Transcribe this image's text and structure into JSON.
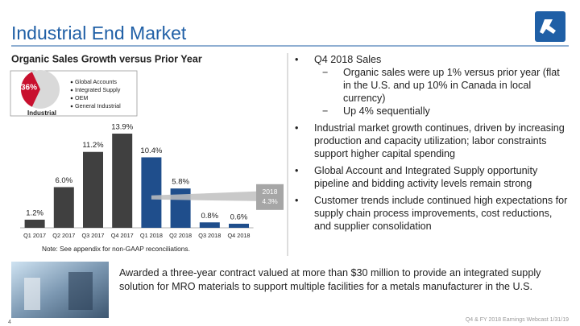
{
  "slide": {
    "title": "Industrial End Market",
    "page_number": "4",
    "footer": "Q4 & FY 2018 Earnings Webcast 1/31/19"
  },
  "segment": {
    "value": 36,
    "value_label": "36%",
    "label": "Industrial",
    "color": "#c8102e",
    "legend": [
      "Global Accounts",
      "Integrated Supply",
      "OEM",
      "General Industrial"
    ]
  },
  "chart_data": {
    "type": "bar",
    "title": "Organic Sales Growth versus Prior Year",
    "categories": [
      "Q1 2017",
      "Q2 2017",
      "Q3 2017",
      "Q4 2017",
      "Q1 2018",
      "Q2 2018",
      "Q3 2018",
      "Q4 2018"
    ],
    "values": [
      1.2,
      6.0,
      11.2,
      13.9,
      10.4,
      5.8,
      0.8,
      0.6
    ],
    "value_labels": [
      "1.2%",
      "6.0%",
      "11.2%",
      "13.9%",
      "10.4%",
      "5.8%",
      "0.8%",
      "0.6%"
    ],
    "colors": [
      "#404040",
      "#404040",
      "#404040",
      "#404040",
      "#1f4e8c",
      "#1f4e8c",
      "#1f4e8c",
      "#1f4e8c"
    ],
    "annotation": {
      "label": "2018",
      "value": 4.3,
      "value_label": "4.3%"
    },
    "note": "Note: See appendix for non-GAAP reconciliations."
  },
  "bullets": [
    {
      "text": "Q4 2018 Sales",
      "sub": [
        "Organic sales were up 1% versus prior year (flat in the U.S. and up 10% in Canada in local currency)",
        "Up 4% sequentially"
      ]
    },
    {
      "text": "Industrial market growth continues, driven by increasing production and capacity utilization; labor constraints support higher capital spending",
      "sub": []
    },
    {
      "text": "Global Account and Integrated Supply opportunity pipeline and bidding activity levels remain strong",
      "sub": []
    },
    {
      "text": "Customer trends include continued high expectations for supply chain process improvements, cost reductions, and supplier consolidation",
      "sub": []
    }
  ],
  "award": "Awarded a three-year contract valued at more than $30 million to provide an integrated supply solution for MRO materials to support multiple facilities for a metals manufacturer in the U.S."
}
